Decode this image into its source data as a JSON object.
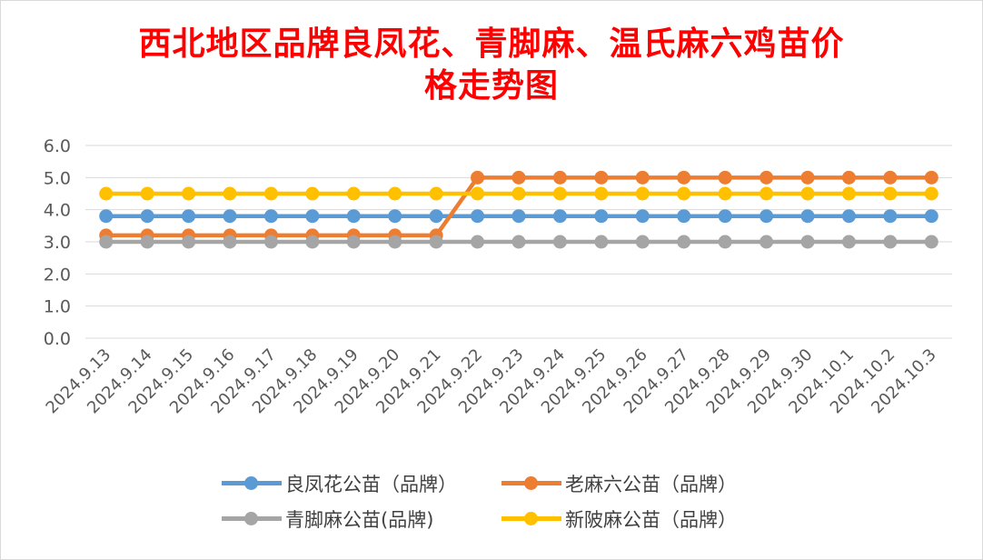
{
  "chart_data": {
    "type": "line",
    "title_lines": [
      "西北地区品牌良凤花、青脚麻、温氏麻六鸡苗价",
      "格走势图"
    ],
    "categories": [
      "2024.9.13",
      "2024.9.14",
      "2024.9.15",
      "2024.9.16",
      "2024.9.17",
      "2024.9.18",
      "2024.9.19",
      "2024.9.20",
      "2024.9.21",
      "2024.9.22",
      "2024.9.23",
      "2024.9.24",
      "2024.9.25",
      "2024.9.26",
      "2024.9.27",
      "2024.9.28",
      "2024.9.29",
      "2024.9.30",
      "2024.10.1",
      "2024.10.2",
      "2024.10.3"
    ],
    "ylim": [
      0,
      6
    ],
    "yticks": [
      "0.0",
      "1.0",
      "2.0",
      "3.0",
      "4.0",
      "5.0",
      "6.0"
    ],
    "grid": true,
    "legend_position": "bottom",
    "series": [
      {
        "name": "良凤花公苗（品牌）",
        "color": "#5b9bd5",
        "values": [
          3.8,
          3.8,
          3.8,
          3.8,
          3.8,
          3.8,
          3.8,
          3.8,
          3.8,
          3.8,
          3.8,
          3.8,
          3.8,
          3.8,
          3.8,
          3.8,
          3.8,
          3.8,
          3.8,
          3.8,
          3.8
        ]
      },
      {
        "name": "老麻六公苗（品牌）",
        "color": "#ed7d31",
        "values": [
          3.2,
          3.2,
          3.2,
          3.2,
          3.2,
          3.2,
          3.2,
          3.2,
          3.2,
          5.0,
          5.0,
          5.0,
          5.0,
          5.0,
          5.0,
          5.0,
          5.0,
          5.0,
          5.0,
          5.0,
          5.0
        ]
      },
      {
        "name": "青脚麻公苗(品牌)",
        "color": "#a5a5a5",
        "values": [
          3.0,
          3.0,
          3.0,
          3.0,
          3.0,
          3.0,
          3.0,
          3.0,
          3.0,
          3.0,
          3.0,
          3.0,
          3.0,
          3.0,
          3.0,
          3.0,
          3.0,
          3.0,
          3.0,
          3.0,
          3.0
        ]
      },
      {
        "name": "新陂麻公苗（品牌）",
        "color": "#ffc000",
        "values": [
          4.5,
          4.5,
          4.5,
          4.5,
          4.5,
          4.5,
          4.5,
          4.5,
          4.5,
          4.5,
          4.5,
          4.5,
          4.5,
          4.5,
          4.5,
          4.5,
          4.5,
          4.5,
          4.5,
          4.5,
          4.5
        ]
      }
    ]
  }
}
